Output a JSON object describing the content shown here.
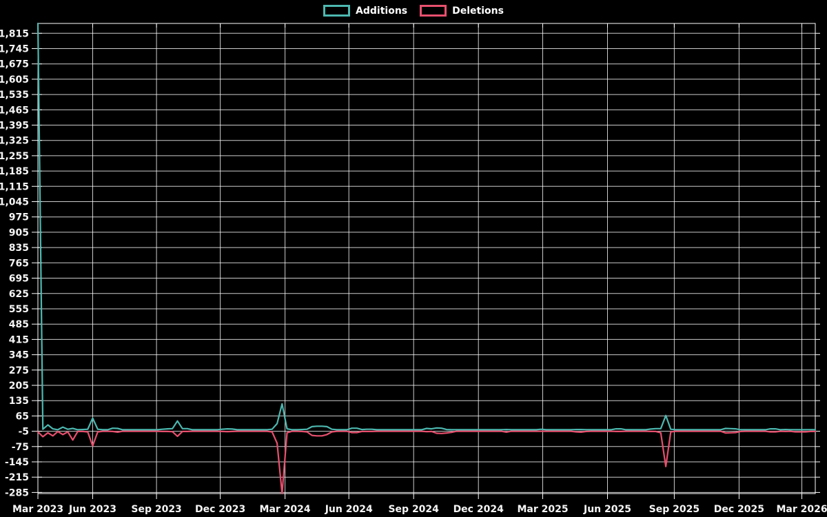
{
  "chart_data": {
    "type": "line",
    "title": "",
    "legend_position": "top-center",
    "grid": true,
    "background": "#000000",
    "grid_color": "#ffffff",
    "text_color": "#ffffff",
    "legend": [
      {
        "name": "Additions",
        "color": "#4db8b0"
      },
      {
        "name": "Deletions",
        "color": "#e8506e"
      }
    ],
    "x_axis": {
      "unit": "week",
      "tick_labels": [
        "Mar 2023",
        "Jun 2023",
        "Sep 2023",
        "Dec 2023",
        "Mar 2024",
        "Jun 2024",
        "Sep 2024",
        "Dec 2024",
        "Mar 2025",
        "Jun 2025",
        "Sep 2025",
        "Dec 2025",
        "Mar 2026"
      ],
      "tick_weeks": [
        0,
        11,
        23.8,
        36.6,
        49.6,
        62.4,
        75.4,
        88.4,
        101.3,
        114.3,
        127.7,
        140.7,
        153.3
      ]
    },
    "y_axis": {
      "range": [
        -290,
        1860
      ],
      "tick_values": [
        1815,
        1745,
        1675,
        1605,
        1535,
        1465,
        1395,
        1325,
        1255,
        1185,
        1115,
        1045,
        975,
        905,
        835,
        765,
        695,
        625,
        555,
        485,
        415,
        345,
        275,
        205,
        135,
        65,
        -5,
        -75,
        -145,
        -215,
        -285
      ]
    },
    "series": [
      {
        "name": "Additions",
        "color": "#4db8b0",
        "values": [
          1860,
          4,
          24,
          6,
          2,
          14,
          4,
          8,
          2,
          3,
          4,
          55,
          4,
          2,
          2,
          9,
          8,
          2,
          2,
          2,
          2,
          2,
          2,
          2,
          2,
          4,
          6,
          7,
          42,
          7,
          7,
          2,
          2,
          2,
          2,
          2,
          2,
          4,
          6,
          5,
          2,
          2,
          2,
          2,
          2,
          2,
          2,
          4,
          30,
          120,
          6,
          2,
          2,
          3,
          4,
          16,
          18,
          18,
          16,
          4,
          2,
          2,
          2,
          9,
          9,
          3,
          4,
          4,
          2,
          2,
          2,
          2,
          2,
          2,
          2,
          2,
          2,
          2,
          8,
          6,
          10,
          9,
          3,
          2,
          2,
          2,
          2,
          2,
          2,
          2,
          2,
          2,
          2,
          2,
          3,
          2,
          2,
          2,
          2,
          2,
          2,
          4,
          2,
          2,
          2,
          2,
          2,
          2,
          3,
          3,
          2,
          2,
          2,
          2,
          2,
          2,
          6,
          6,
          2,
          2,
          2,
          2,
          2,
          5,
          7,
          7,
          67,
          4,
          2,
          2,
          2,
          2,
          2,
          2,
          2,
          2,
          2,
          2,
          8,
          7,
          6,
          2,
          2,
          2,
          2,
          2,
          2,
          6,
          6,
          2,
          3,
          2,
          2,
          2,
          2,
          2,
          2
        ]
      },
      {
        "name": "Deletions",
        "color": "#e8506e",
        "values": [
          -8,
          -30,
          -12,
          -26,
          -6,
          -20,
          -8,
          -45,
          -6,
          -6,
          -8,
          -72,
          -8,
          -5,
          -5,
          -6,
          -9,
          -5,
          -5,
          -5,
          -5,
          -5,
          -5,
          -5,
          -5,
          -6,
          -6,
          -7,
          -28,
          -6,
          -6,
          -5,
          -5,
          -5,
          -5,
          -5,
          -5,
          -6,
          -7,
          -6,
          -5,
          -5,
          -5,
          -5,
          -5,
          -5,
          -5,
          -8,
          -60,
          -290,
          -12,
          -5,
          -5,
          -6,
          -8,
          -24,
          -26,
          -26,
          -20,
          -8,
          -5,
          -5,
          -5,
          -11,
          -11,
          -6,
          -6,
          -6,
          -5,
          -5,
          -5,
          -5,
          -5,
          -5,
          -5,
          -5,
          -5,
          -5,
          -7,
          -6,
          -14,
          -15,
          -13,
          -10,
          -5,
          -5,
          -5,
          -5,
          -5,
          -5,
          -5,
          -5,
          -5,
          -5,
          -9,
          -5,
          -5,
          -5,
          -5,
          -5,
          -5,
          -5,
          -5,
          -5,
          -5,
          -5,
          -5,
          -5,
          -8,
          -9,
          -6,
          -5,
          -5,
          -5,
          -5,
          -5,
          -6,
          -6,
          -5,
          -5,
          -5,
          -5,
          -5,
          -6,
          -6,
          -12,
          -166,
          -8,
          -5,
          -5,
          -5,
          -5,
          -5,
          -5,
          -5,
          -5,
          -5,
          -5,
          -13,
          -12,
          -11,
          -6,
          -5,
          -5,
          -5,
          -5,
          -5,
          -8,
          -8,
          -5,
          -6,
          -5,
          -8,
          -8,
          -8,
          -6,
          -6
        ]
      }
    ]
  }
}
